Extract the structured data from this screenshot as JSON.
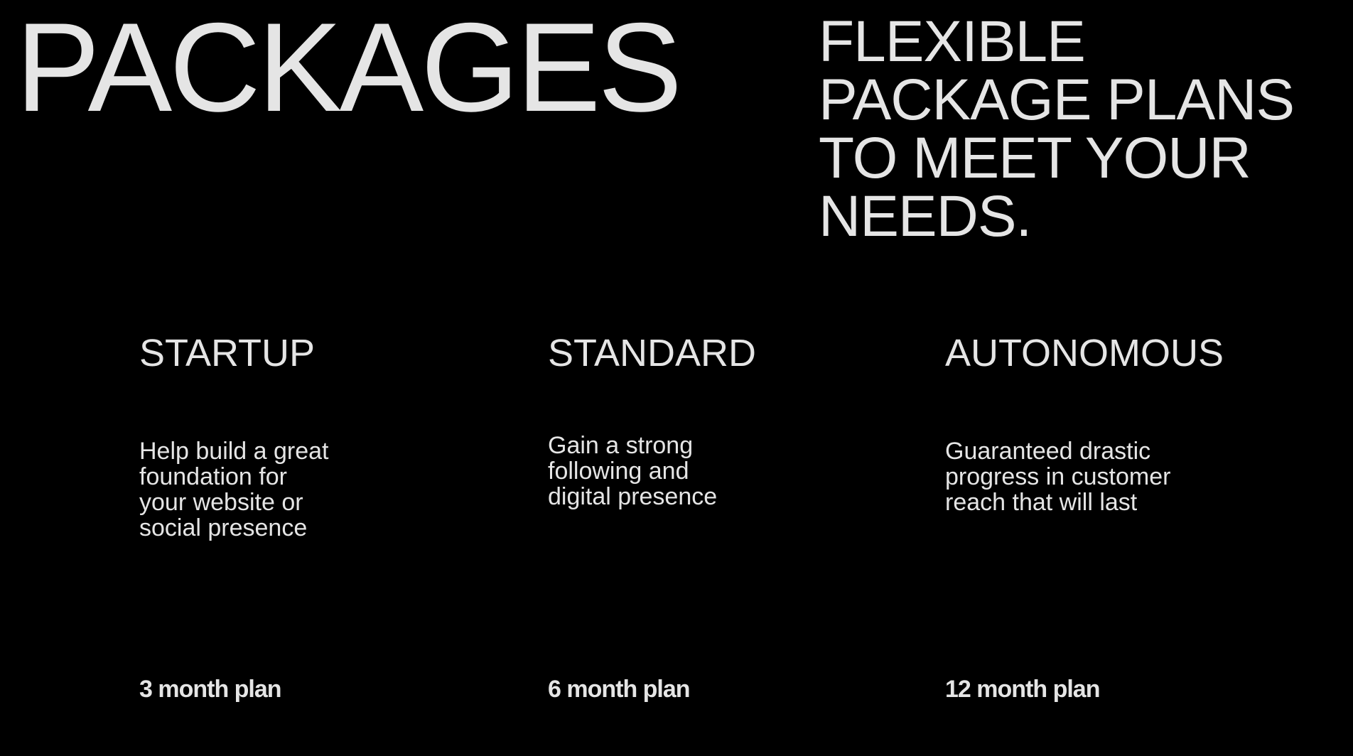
{
  "header": {
    "title": "PACKAGES",
    "tagline_lines": [
      "FLEXIBLE",
      "PACKAGE PLANS",
      "TO MEET YOUR",
      "NEEDS."
    ]
  },
  "packages": [
    {
      "name": "STARTUP",
      "description_lines": [
        "Help build a great",
        "foundation for",
        "your website or",
        "social presence"
      ],
      "plan": "3 month plan"
    },
    {
      "name": "STANDARD",
      "description_lines": [
        "Gain a strong",
        "following and",
        "digital presence"
      ],
      "plan": "6 month plan"
    },
    {
      "name": "AUTONOMOUS",
      "description_lines": [
        "Guaranteed drastic",
        "progress in customer",
        "reach that will last"
      ],
      "plan": "12 month plan"
    }
  ],
  "colors": {
    "background": "#000000",
    "text": "#e5e5e5"
  }
}
